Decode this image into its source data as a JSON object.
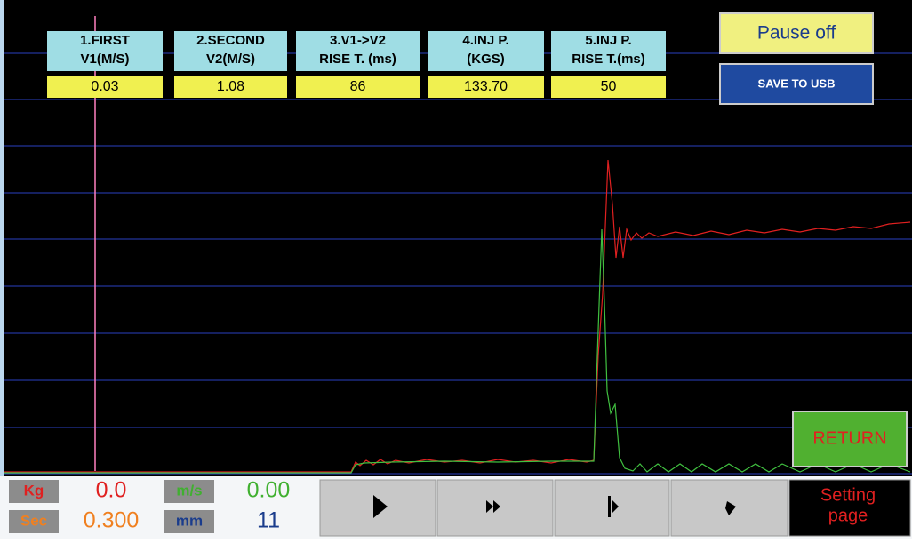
{
  "parameters": [
    {
      "label": [
        "1.FIRST",
        "V1(M/S)"
      ],
      "value": "0.03"
    },
    {
      "label": [
        "2.SECOND",
        "V2(M/S)"
      ],
      "value": "1.08"
    },
    {
      "label": [
        "3.V1->V2",
        "RISE T. (ms)"
      ],
      "value": "86"
    },
    {
      "label": [
        "4.INJ P.",
        "(KGS)"
      ],
      "value": "133.70"
    },
    {
      "label": [
        "5.INJ P.",
        "RISE T.(ms)"
      ],
      "value": "50"
    }
  ],
  "buttons": {
    "pause": "Pause off",
    "save": "SAVE TO USB",
    "return": "RETURN",
    "setting": [
      "Setting",
      "page"
    ]
  },
  "readouts": [
    {
      "unit": "Kg",
      "value": "0.0"
    },
    {
      "unit": "Sec",
      "value": "0.300"
    },
    {
      "unit": "m/s",
      "value": "0.00"
    },
    {
      "unit": "mm",
      "value": "11"
    }
  ]
}
